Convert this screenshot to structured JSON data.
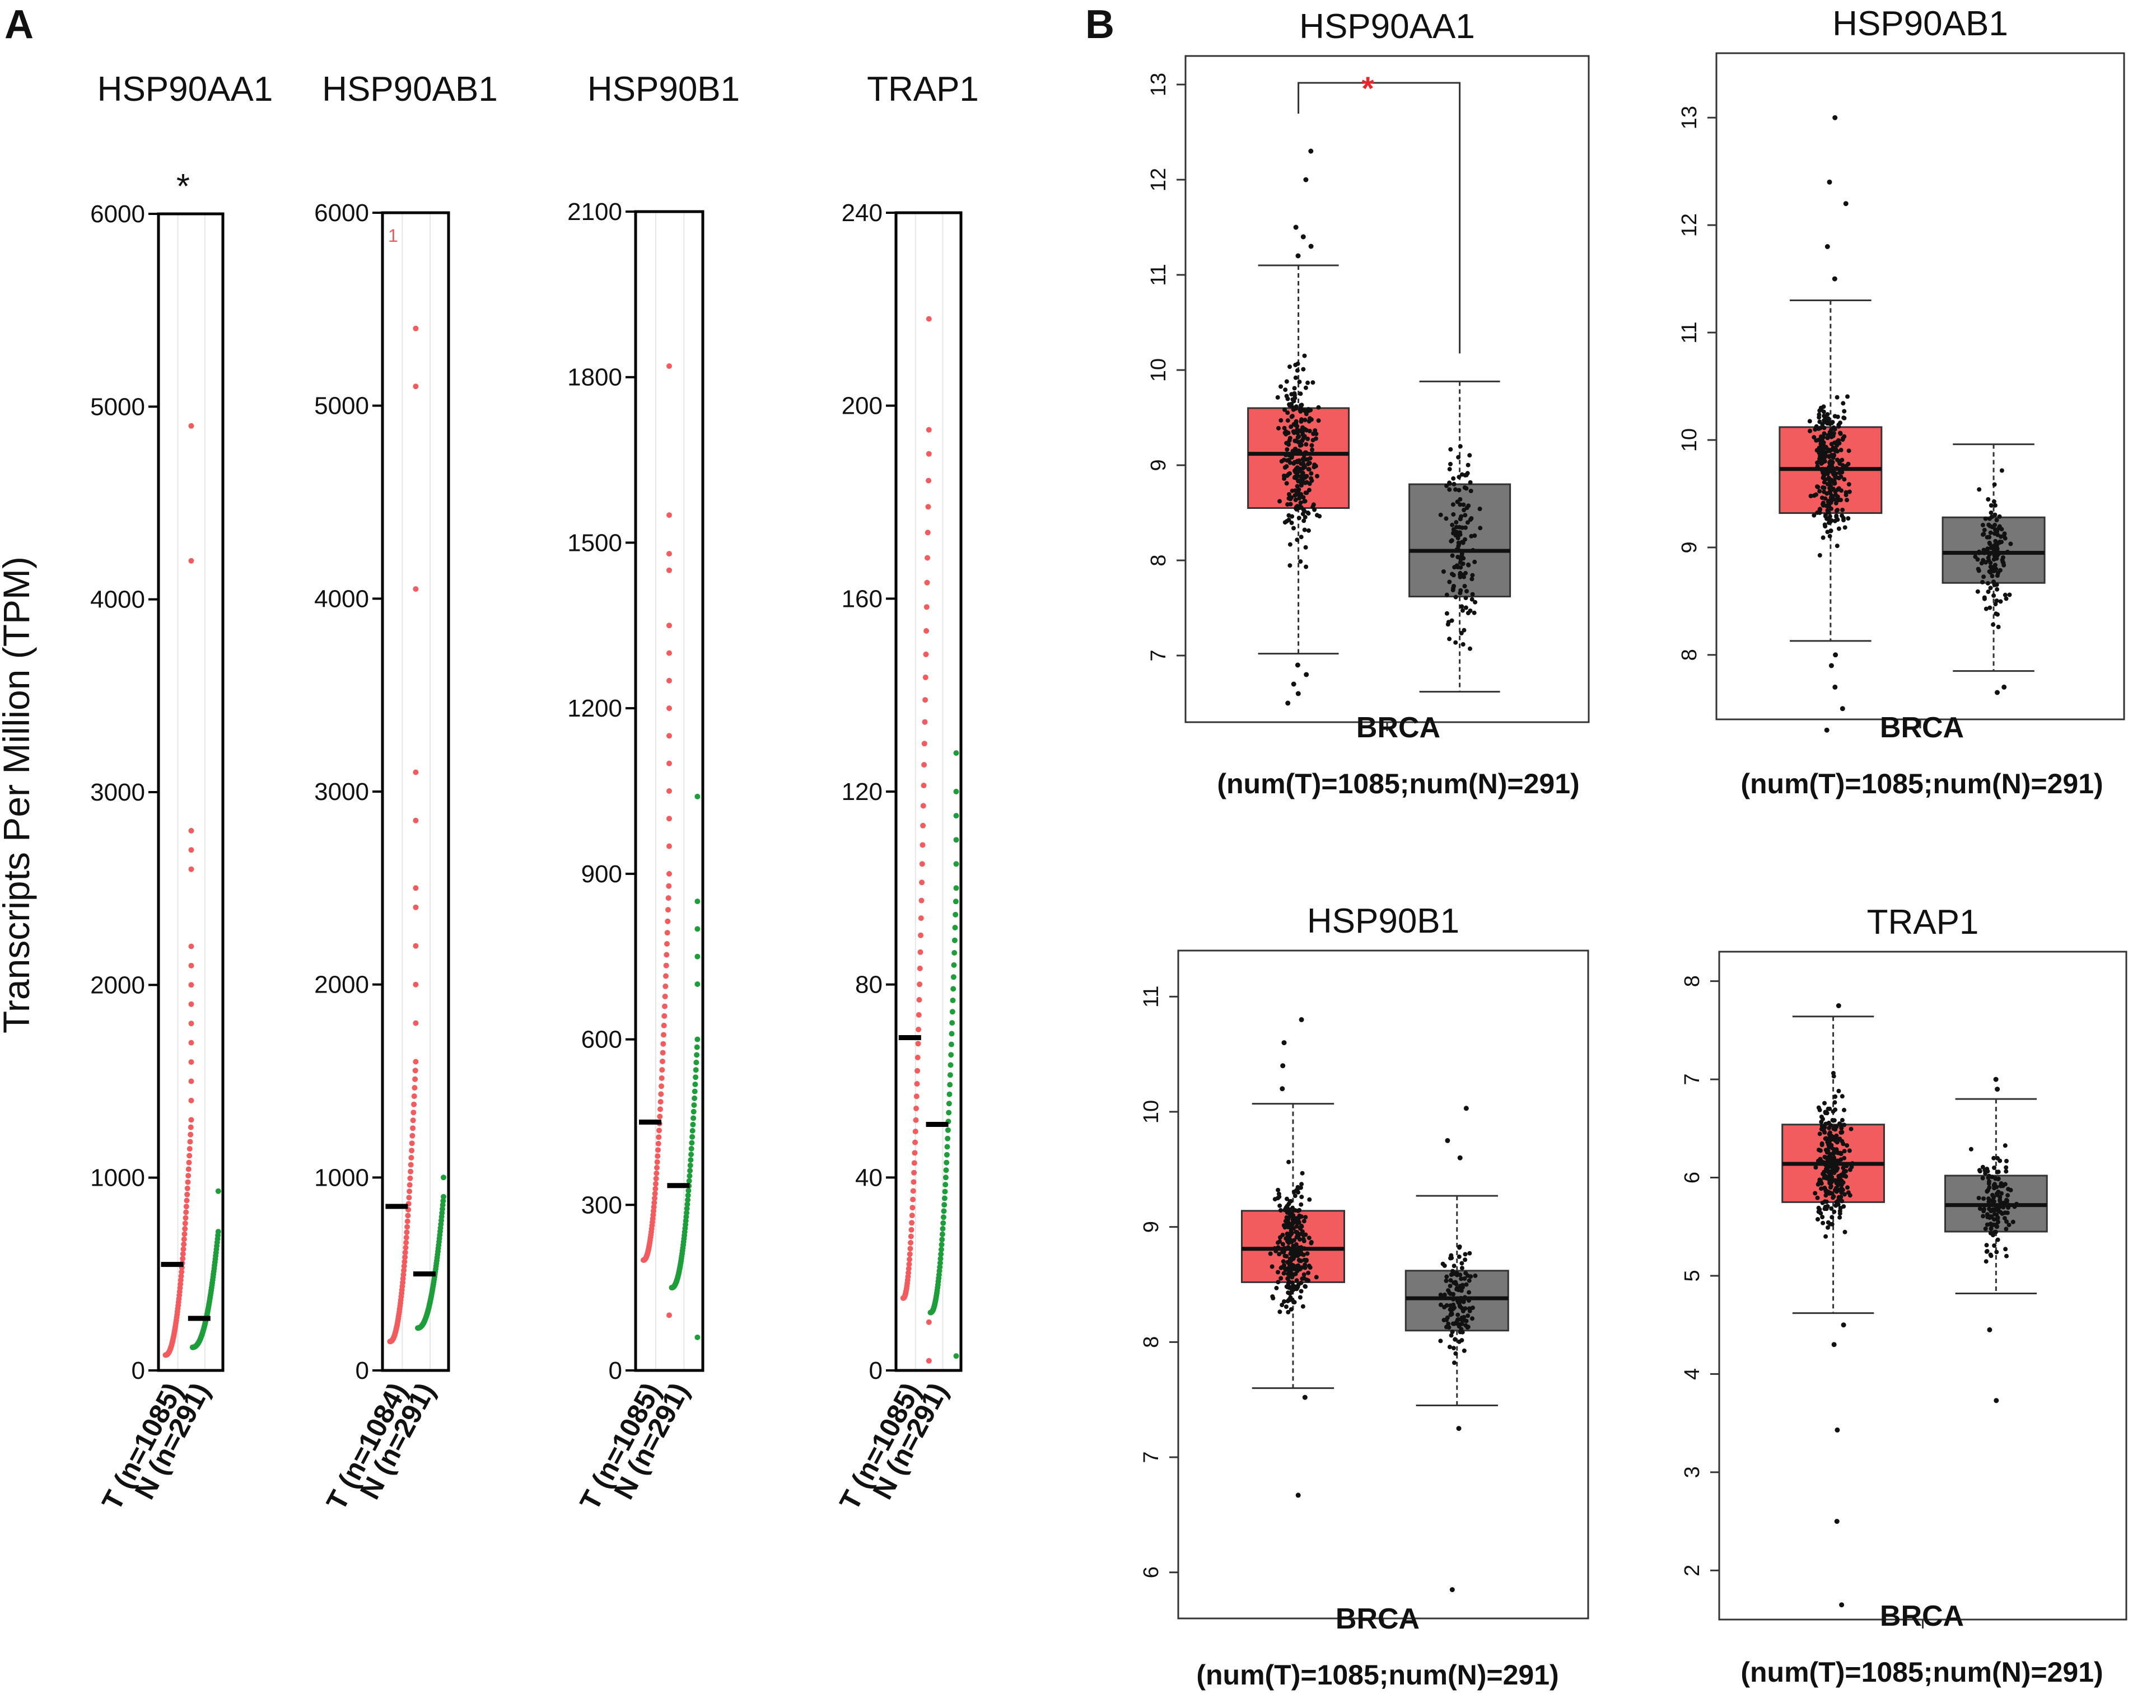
{
  "panel_letters": {
    "a": "A",
    "b": "B"
  },
  "panel_a_ylabel": "Transcripts Per Million (TPM)",
  "colors": {
    "tumor_dot": "#f25c5f",
    "normal_dot": "#1e9e3a",
    "tumor_box": "#f25c5f",
    "normal_box": "#777777",
    "star_red": "#e8262b"
  },
  "chart_data": [
    {
      "type": "scatter",
      "panel": "A",
      "title": "HSP90AA1",
      "significance": "*",
      "ylim": [
        0,
        6000
      ],
      "yticks": [
        0,
        1000,
        2000,
        3000,
        4000,
        5000,
        6000
      ],
      "tick_labels": [
        "0",
        "1000",
        "2000",
        "3000",
        "4000",
        "5000",
        "6000"
      ],
      "annotation": "",
      "categories": [
        "T (n=1085)",
        "N (n=291)"
      ],
      "series": [
        {
          "name": "T (n=1085)",
          "median": 550,
          "range": [
            80,
            1300
          ],
          "outliers": [
            1400,
            1500,
            1600,
            1700,
            1800,
            1900,
            2000,
            2100,
            2200,
            2600,
            2700,
            2800,
            4200,
            4900
          ]
        },
        {
          "name": "N (n=291)",
          "median": 270,
          "range": [
            120,
            720
          ],
          "outliers": [
            930
          ]
        }
      ]
    },
    {
      "type": "scatter",
      "panel": "A",
      "title": "HSP90AB1",
      "significance": "",
      "ylim": [
        0,
        6000
      ],
      "yticks": [
        0,
        1000,
        2000,
        3000,
        4000,
        5000,
        6000
      ],
      "tick_labels": [
        "0",
        "1000",
        "2000",
        "3000",
        "4000",
        "5000",
        "6000"
      ],
      "annotation": "1",
      "categories": [
        "T (n=1084)",
        "N (n=291)"
      ],
      "series": [
        {
          "name": "T (n=1084)",
          "median": 850,
          "range": [
            150,
            1600
          ],
          "outliers": [
            1800,
            2000,
            2200,
            2400,
            2500,
            2850,
            3100,
            4050,
            5100,
            5400
          ]
        },
        {
          "name": "N (n=291)",
          "median": 500,
          "range": [
            220,
            900
          ],
          "outliers": [
            1000
          ]
        }
      ]
    },
    {
      "type": "scatter",
      "panel": "A",
      "title": "HSP90B1",
      "significance": "",
      "ylim": [
        0,
        2100
      ],
      "yticks": [
        0,
        300,
        600,
        900,
        1200,
        1500,
        1800,
        2100
      ],
      "tick_labels": [
        "0",
        "300",
        "600",
        "900",
        "1200",
        "1500",
        "1800",
        "2100"
      ],
      "annotation": "",
      "categories": [
        "T (n=1085)",
        "N (n=291)"
      ],
      "series": [
        {
          "name": "T (n=1085)",
          "median": 450,
          "range": [
            200,
            900
          ],
          "outliers": [
            100,
            950,
            1000,
            1050,
            1100,
            1150,
            1200,
            1250,
            1300,
            1350,
            1450,
            1480,
            1550,
            1820
          ]
        },
        {
          "name": "N (n=291)",
          "median": 335,
          "range": [
            150,
            600
          ],
          "outliers": [
            60,
            700,
            750,
            800,
            850,
            1040
          ]
        }
      ]
    },
    {
      "type": "scatter",
      "panel": "A",
      "title": "TRAP1",
      "significance": "",
      "ylim": [
        0,
        240
      ],
      "yticks": [
        0,
        40,
        80,
        120,
        160,
        200,
        240
      ],
      "tick_labels": [
        "0",
        "40",
        "80",
        "120",
        "160",
        "200",
        "240"
      ],
      "annotation": "",
      "categories": [
        "T (n=1085)",
        "N (n=291)"
      ],
      "series": [
        {
          "name": "T (n=1085)",
          "median": 69,
          "range": [
            15,
            190
          ],
          "outliers": [
            2,
            10,
            195,
            218
          ]
        },
        {
          "name": "N (n=291)",
          "median": 51,
          "range": [
            12,
            100
          ],
          "outliers": [
            3,
            105,
            110,
            115,
            120,
            128
          ]
        }
      ]
    },
    {
      "type": "box",
      "panel": "B",
      "title": "HSP90AA1",
      "significance": "*",
      "cancer": "BRCA",
      "subtitle": "(num(T)=1085;num(N)=291)",
      "ylim": [
        6.3,
        13.3
      ],
      "yticks": [
        7,
        8,
        9,
        10,
        11,
        12,
        13
      ],
      "tick_labels": [
        "7",
        "8",
        "9",
        "10",
        "11",
        "12",
        "13"
      ],
      "series": [
        {
          "name": "T",
          "q1": 8.55,
          "median": 9.12,
          "q3": 9.6,
          "whisker_low": 7.02,
          "whisker_high": 11.1,
          "outliers": [
            6.5,
            6.6,
            6.7,
            6.8,
            6.9,
            11.2,
            11.3,
            11.4,
            11.5,
            12.0,
            12.3
          ]
        },
        {
          "name": "N",
          "q1": 7.62,
          "median": 8.1,
          "q3": 8.8,
          "whisker_low": 6.62,
          "whisker_high": 9.88,
          "outliers": []
        }
      ]
    },
    {
      "type": "box",
      "panel": "B",
      "title": "HSP90AB1",
      "significance": "",
      "cancer": "BRCA",
      "subtitle": "(num(T)=1085;num(N)=291)",
      "ylim": [
        7.4,
        13.6
      ],
      "yticks": [
        8,
        9,
        10,
        11,
        12,
        13
      ],
      "tick_labels": [
        "8",
        "9",
        "10",
        "11",
        "12",
        "13"
      ],
      "series": [
        {
          "name": "T",
          "q1": 9.32,
          "median": 9.73,
          "q3": 10.12,
          "whisker_low": 8.13,
          "whisker_high": 11.3,
          "outliers": [
            7.3,
            7.5,
            7.7,
            7.9,
            8.0,
            11.5,
            11.8,
            12.2,
            12.4,
            13.0
          ]
        },
        {
          "name": "N",
          "q1": 8.67,
          "median": 8.95,
          "q3": 9.28,
          "whisker_low": 7.85,
          "whisker_high": 9.96,
          "outliers": [
            7.65,
            7.7
          ]
        }
      ]
    },
    {
      "type": "box",
      "panel": "B",
      "title": "HSP90B1",
      "significance": "",
      "cancer": "BRCA",
      "subtitle": "(num(T)=1085;num(N)=291)",
      "ylim": [
        5.6,
        11.4
      ],
      "yticks": [
        6,
        7,
        8,
        9,
        10,
        11
      ],
      "tick_labels": [
        "6",
        "7",
        "8",
        "9",
        "10",
        "11"
      ],
      "series": [
        {
          "name": "T",
          "q1": 8.52,
          "median": 8.81,
          "q3": 9.14,
          "whisker_low": 7.6,
          "whisker_high": 10.07,
          "outliers": [
            6.67,
            7.52,
            10.2,
            10.4,
            10.6,
            10.8
          ]
        },
        {
          "name": "N",
          "q1": 8.1,
          "median": 8.38,
          "q3": 8.62,
          "whisker_low": 7.45,
          "whisker_high": 9.27,
          "outliers": [
            5.85,
            7.25,
            9.6,
            9.75,
            10.03
          ]
        }
      ]
    },
    {
      "type": "box",
      "panel": "B",
      "title": "TRAP1",
      "significance": "",
      "cancer": "BRCA",
      "subtitle": "(num(T)=1085;num(N)=291)",
      "ylim": [
        1.5,
        8.3
      ],
      "yticks": [
        2,
        3,
        4,
        5,
        6,
        7,
        8
      ],
      "tick_labels": [
        "2",
        "3",
        "4",
        "5",
        "6",
        "7",
        "8"
      ],
      "series": [
        {
          "name": "T",
          "q1": 5.75,
          "median": 6.14,
          "q3": 6.54,
          "whisker_low": 4.62,
          "whisker_high": 7.64,
          "outliers": [
            1.65,
            2.5,
            3.43,
            4.3,
            4.5,
            7.75
          ]
        },
        {
          "name": "N",
          "q1": 5.45,
          "median": 5.72,
          "q3": 6.02,
          "whisker_low": 4.82,
          "whisker_high": 6.8,
          "outliers": [
            3.73,
            4.45,
            6.9,
            7.0
          ]
        }
      ]
    }
  ]
}
